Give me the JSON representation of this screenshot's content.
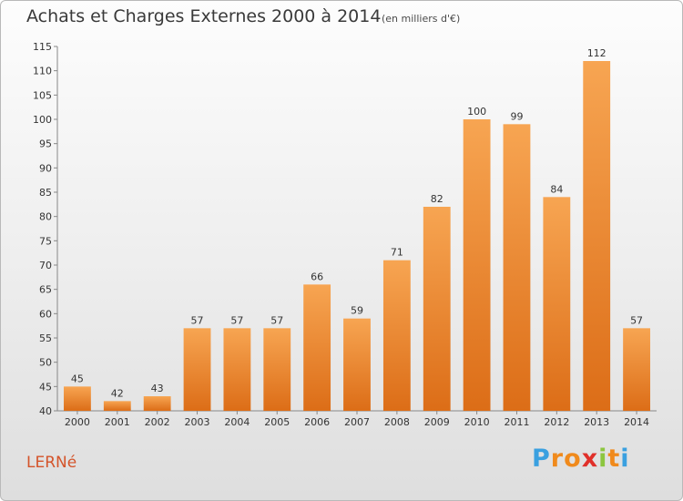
{
  "chart_data": {
    "type": "bar",
    "title": "Achats et Charges Externes 2000 à 2014",
    "subtitle": "(en milliers d'€)",
    "categories": [
      "2000",
      "2001",
      "2002",
      "2003",
      "2004",
      "2005",
      "2006",
      "2007",
      "2008",
      "2009",
      "2010",
      "2011",
      "2012",
      "2013",
      "2014"
    ],
    "values": [
      45,
      42,
      43,
      57,
      57,
      57,
      66,
      59,
      71,
      82,
      100,
      99,
      84,
      112,
      57
    ],
    "ylim": [
      40,
      115
    ],
    "yticks": [
      40,
      45,
      50,
      55,
      60,
      65,
      70,
      75,
      80,
      85,
      90,
      95,
      100,
      105,
      110,
      115
    ],
    "grid": false,
    "bar_color": "#f0882e",
    "xlabel": "",
    "ylabel": ""
  },
  "location": "LERNé",
  "logo": {
    "letters": [
      "P",
      "r",
      "o",
      "x",
      "i",
      "t",
      "i"
    ],
    "colors": [
      "#3aa0e0",
      "#f08a1c",
      "#f08a1c",
      "#e0302a",
      "#8cc63f",
      "#f08a1c",
      "#3aa0e0"
    ]
  }
}
